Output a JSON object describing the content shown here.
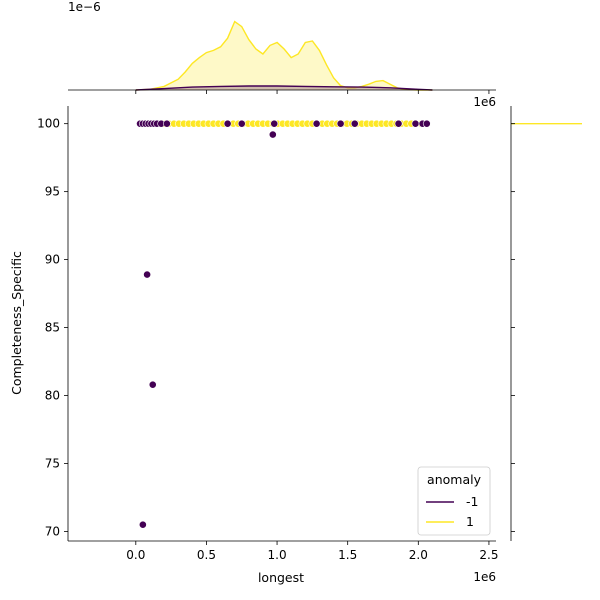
{
  "chart_data": {
    "type": "scatter",
    "subtype": "jointplot",
    "title": "",
    "xlabel": "longest",
    "ylabel": "Completeness_Specific",
    "x_offset_text": "1e6",
    "top_marginal_offset_text": "1e−6",
    "top_marginal_x_offset_text": "1e6",
    "xlim": [
      -0.48,
      2.55
    ],
    "ylim": [
      69.3,
      101.3
    ],
    "x_ticks": [
      0.0,
      0.5,
      1.0,
      1.5,
      2.0,
      2.5
    ],
    "x_tick_labels": [
      "0.0",
      "0.5",
      "1.0",
      "1.5",
      "2.0",
      "2.5"
    ],
    "y_ticks": [
      70,
      75,
      80,
      85,
      90,
      95,
      100
    ],
    "y_tick_labels": [
      "70",
      "75",
      "80",
      "85",
      "90",
      "95",
      "100"
    ],
    "grid": false,
    "legend": {
      "title": "anomaly",
      "placement": "lower-right",
      "entries": [
        {
          "label": "-1",
          "color": "#440154"
        },
        {
          "label": "1",
          "color": "#fde725"
        }
      ]
    },
    "series": [
      {
        "name": "-1",
        "color": "#440154",
        "points": [
          [
            0.05,
            70.5
          ],
          [
            0.08,
            88.9
          ],
          [
            0.12,
            80.8
          ],
          [
            0.97,
            99.2
          ],
          [
            0.03,
            100
          ],
          [
            0.05,
            100
          ],
          [
            0.07,
            100
          ],
          [
            0.09,
            100
          ],
          [
            0.11,
            100
          ],
          [
            0.13,
            100
          ],
          [
            0.15,
            100
          ],
          [
            0.18,
            100
          ],
          [
            0.22,
            100
          ],
          [
            0.65,
            100
          ],
          [
            0.75,
            100
          ],
          [
            0.98,
            100
          ],
          [
            1.28,
            100
          ],
          [
            1.45,
            100
          ],
          [
            1.55,
            100
          ],
          [
            1.86,
            100
          ],
          [
            1.98,
            100
          ],
          [
            2.03,
            100
          ],
          [
            2.06,
            100
          ]
        ]
      },
      {
        "name": "1",
        "color": "#fde725",
        "x_range": [
          0.2,
          2.02
        ],
        "y_value": 100
      }
    ],
    "top_marginal": {
      "series": [
        {
          "name": "1",
          "x": [
            0.0,
            0.1,
            0.2,
            0.3,
            0.35,
            0.4,
            0.45,
            0.5,
            0.55,
            0.6,
            0.65,
            0.7,
            0.75,
            0.8,
            0.85,
            0.9,
            0.95,
            1.0,
            1.05,
            1.1,
            1.15,
            1.2,
            1.25,
            1.3,
            1.35,
            1.4,
            1.45,
            1.5,
            1.55,
            1.6,
            1.65,
            1.7,
            1.75,
            1.8,
            1.85,
            1.9,
            2.0,
            2.1
          ],
          "y": [
            0.0,
            0.01,
            0.05,
            0.15,
            0.25,
            0.37,
            0.45,
            0.52,
            0.55,
            0.6,
            0.72,
            0.95,
            0.88,
            0.7,
            0.57,
            0.5,
            0.62,
            0.66,
            0.57,
            0.45,
            0.5,
            0.66,
            0.68,
            0.55,
            0.35,
            0.17,
            0.06,
            0.03,
            0.03,
            0.05,
            0.08,
            0.12,
            0.13,
            0.08,
            0.03,
            0.01,
            0.0,
            0.0
          ]
        },
        {
          "name": "-1",
          "x": [
            0.0,
            0.2,
            0.4,
            0.6,
            0.8,
            1.0,
            1.2,
            1.4,
            1.6,
            1.8,
            2.0,
            2.1
          ],
          "y": [
            0.0,
            0.02,
            0.04,
            0.05,
            0.055,
            0.055,
            0.05,
            0.045,
            0.04,
            0.03,
            0.01,
            0.0
          ]
        }
      ]
    },
    "right_marginal": {
      "series": [
        {
          "name": "1",
          "y_value": 100
        }
      ]
    }
  }
}
